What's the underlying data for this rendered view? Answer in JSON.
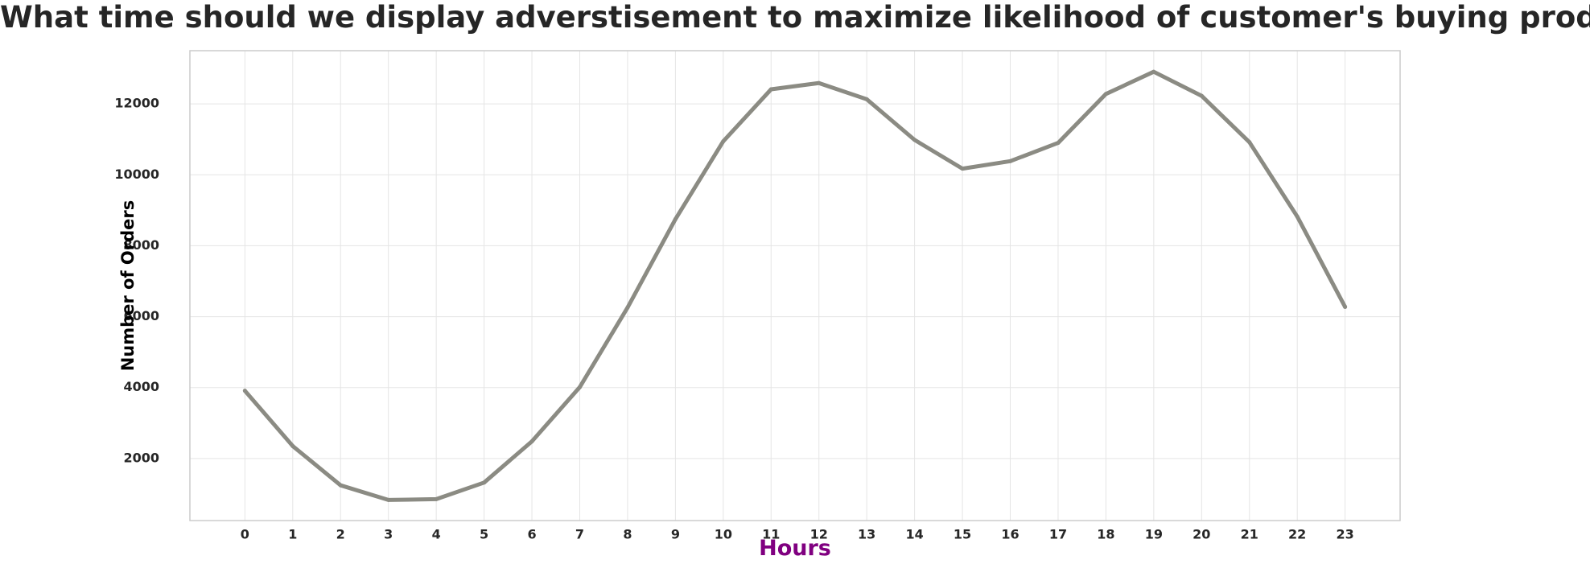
{
  "chart_data": {
    "type": "line",
    "title": "What time should we display adverstisement to maximize likelihood of customer's buying product?",
    "xlabel": "Hours",
    "ylabel": "Number of Orders",
    "x": [
      0,
      1,
      2,
      3,
      4,
      5,
      6,
      7,
      8,
      9,
      10,
      11,
      12,
      13,
      14,
      15,
      16,
      17,
      18,
      19,
      20,
      21,
      22,
      23
    ],
    "x_tick_labels": [
      "0",
      "1",
      "2",
      "3",
      "4",
      "5",
      "6",
      "7",
      "8",
      "9",
      "10",
      "11",
      "12",
      "13",
      "14",
      "15",
      "16",
      "17",
      "18",
      "19",
      "20",
      "21",
      "22",
      "23"
    ],
    "series": [
      {
        "values": [
          3910,
          2350,
          1243,
          831,
          854,
          1321,
          2482,
          4011,
          6256,
          8748,
          10944,
          12411,
          12587,
          12129,
          10984,
          10175,
          10384,
          10899,
          12280,
          12905,
          12228,
          10921,
          8822,
          6275
        ]
      }
    ],
    "ylim": [
      250,
      13500
    ],
    "xlim": [
      -1.15,
      24.15
    ],
    "y_ticks": [
      2000,
      4000,
      6000,
      8000,
      10000,
      12000
    ],
    "y_tick_labels": [
      "2000",
      "4000",
      "6000",
      "8000",
      "10000",
      "12000"
    ],
    "grid": true,
    "legend": "none",
    "colors": {
      "line": "#8b8b83",
      "xlabel": "#800080",
      "ylabel": "#000000",
      "grid": "#e5e5e5",
      "frame": "#cccccc",
      "title": "#262626"
    }
  }
}
